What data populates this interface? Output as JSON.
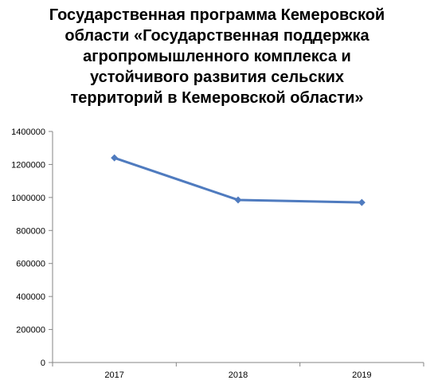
{
  "chart_data": {
    "type": "line",
    "title": "Государственная программа Кемеровской\nобласти «Государственная поддержка\nагропромышленного комплекса и\nустойчивого развития сельских\nтерриторий в Кемеровской области»",
    "xlabel": "",
    "ylabel": "",
    "categories": [
      "2017",
      "2018",
      "2019"
    ],
    "series": [
      {
        "values": [
          1240000,
          985000,
          970000
        ],
        "color": "#4f7bbf"
      }
    ],
    "ylim": [
      0,
      1400000
    ],
    "yticks": [
      "0",
      "200000",
      "400000",
      "600000",
      "800000",
      "1000000",
      "1200000",
      "1400000"
    ],
    "grid": false,
    "legend": "none"
  }
}
